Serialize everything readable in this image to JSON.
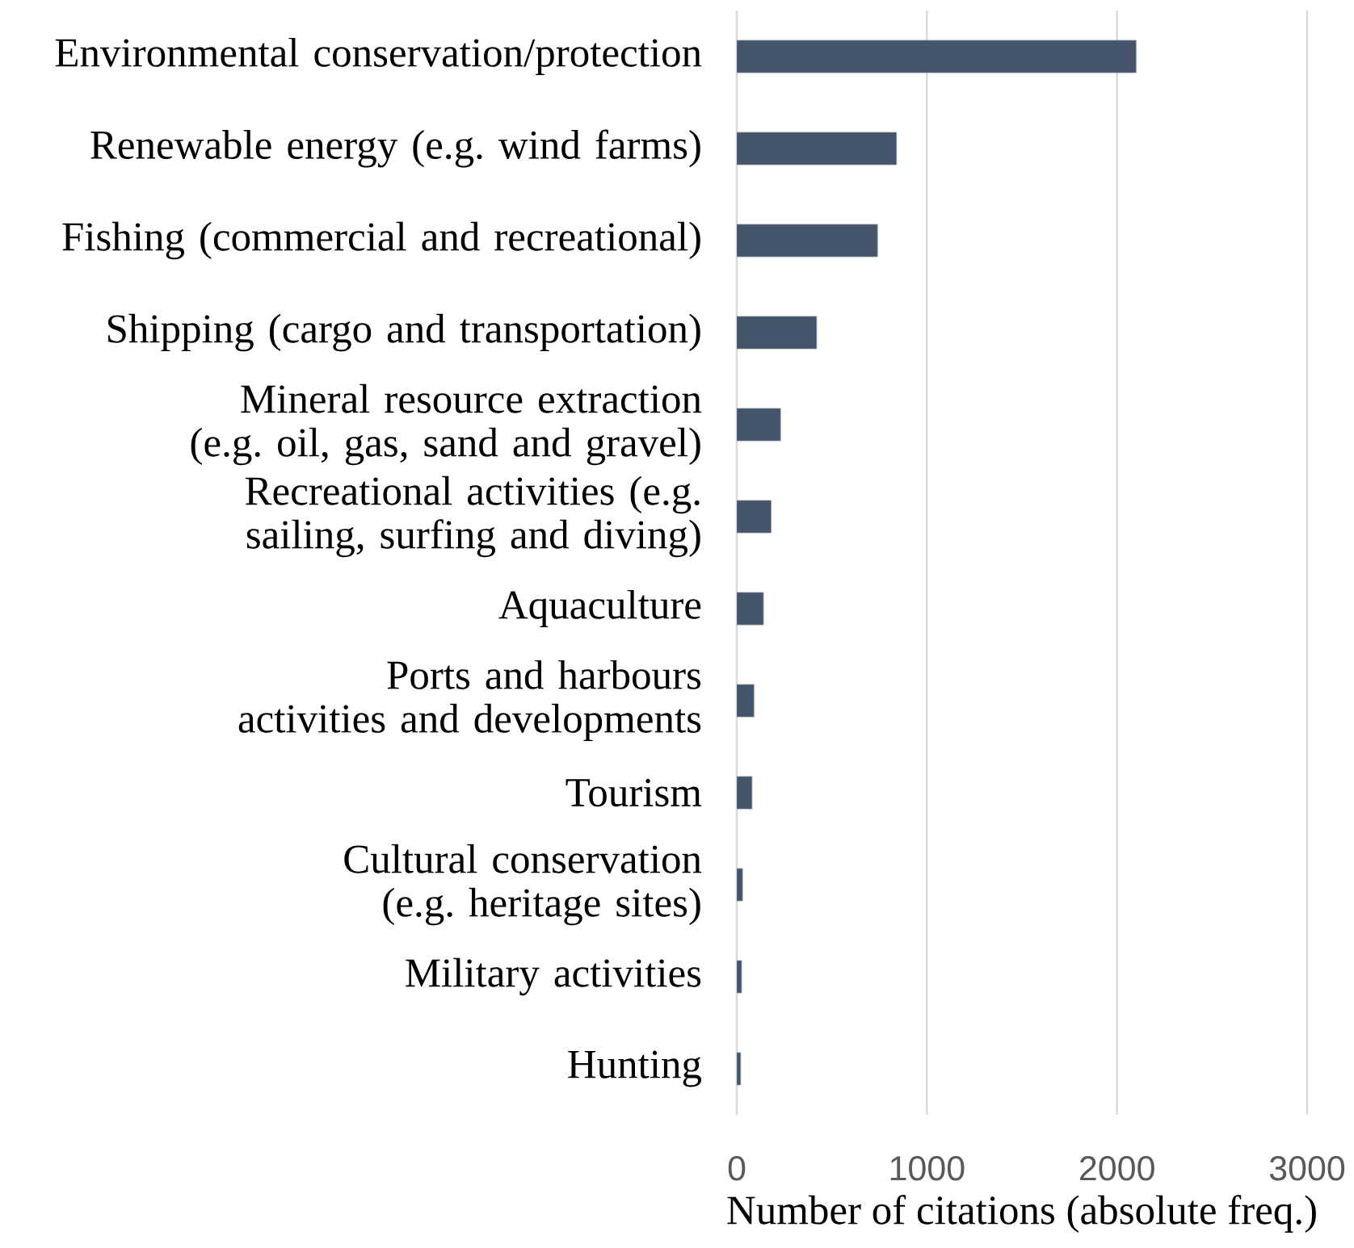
{
  "chart_data": {
    "type": "bar",
    "orientation": "horizontal",
    "xlabel": "Number of citations (absolute freq.)",
    "categories": [
      "Environmental conservation/protection",
      "Renewable energy (e.g. wind farms)",
      "Fishing (commercial and recreational)",
      "Shipping (cargo and transportation)",
      "Mineral resource extraction (e.g. oil, gas, sand and gravel)",
      "Recreational activities (e.g. sailing, surfing and diving)",
      "Aquaculture",
      "Ports and harbours activities and developments",
      "Tourism",
      "Cultural conservation (e.g. heritage sites)",
      "Military activities",
      "Hunting"
    ],
    "values": [
      2100,
      840,
      740,
      420,
      230,
      180,
      140,
      90,
      80,
      30,
      25,
      20
    ],
    "color": "#44546a",
    "xlim": [
      0,
      3000
    ],
    "xticks": [
      0,
      1000,
      2000,
      3000
    ],
    "grid": "x"
  }
}
